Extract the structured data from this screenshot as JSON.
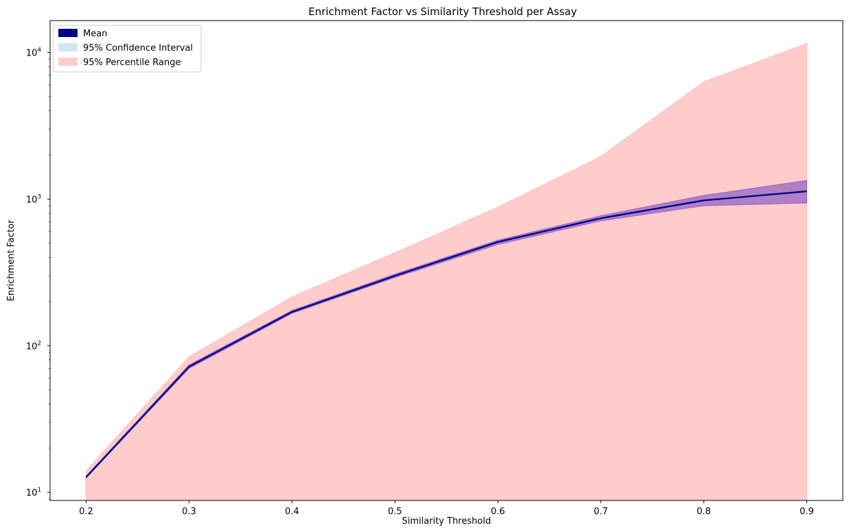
{
  "chart_data": {
    "type": "line",
    "title": "Enrichment Factor vs Similarity Threshold per Assay",
    "xlabel": "Similarity Threshold",
    "ylabel": "Enrichment Factor",
    "yscale": "log",
    "xlim": [
      0.165,
      0.935
    ],
    "ylim": [
      8.8,
      16500
    ],
    "x": [
      0.2,
      0.3,
      0.4,
      0.5,
      0.6,
      0.7,
      0.8,
      0.9
    ],
    "x_ticks": [
      "0.2",
      "0.3",
      "0.4",
      "0.5",
      "0.6",
      "0.7",
      "0.8",
      "0.9"
    ],
    "y_ticks": [
      {
        "value": 10,
        "base": "10",
        "exp": "1"
      },
      {
        "value": 100,
        "base": "10",
        "exp": "2"
      },
      {
        "value": 1000,
        "base": "10",
        "exp": "3"
      },
      {
        "value": 10000,
        "base": "10",
        "exp": "4"
      }
    ],
    "grid": false,
    "legend_position": "top-left",
    "series": [
      {
        "name": "Mean",
        "kind": "line",
        "color": "#00008b",
        "values": [
          12.7,
          72,
          170,
          300,
          510,
          740,
          980,
          1130
        ]
      },
      {
        "name": "95% Confidence Interval",
        "kind": "band",
        "color": "#add8e6",
        "lower": [
          12.5,
          70,
          166,
          292,
          490,
          710,
          900,
          940
        ],
        "upper": [
          12.9,
          74,
          174,
          308,
          525,
          770,
          1060,
          1340
        ]
      },
      {
        "name": "95% Percentile Range",
        "kind": "band",
        "color": "#ff9999",
        "lower": [
          8.8,
          8.8,
          8.8,
          8.8,
          8.8,
          8.8,
          8.8,
          8.8
        ],
        "upper": [
          14,
          84,
          215,
          430,
          880,
          1950,
          6300,
          11500
        ]
      }
    ]
  }
}
